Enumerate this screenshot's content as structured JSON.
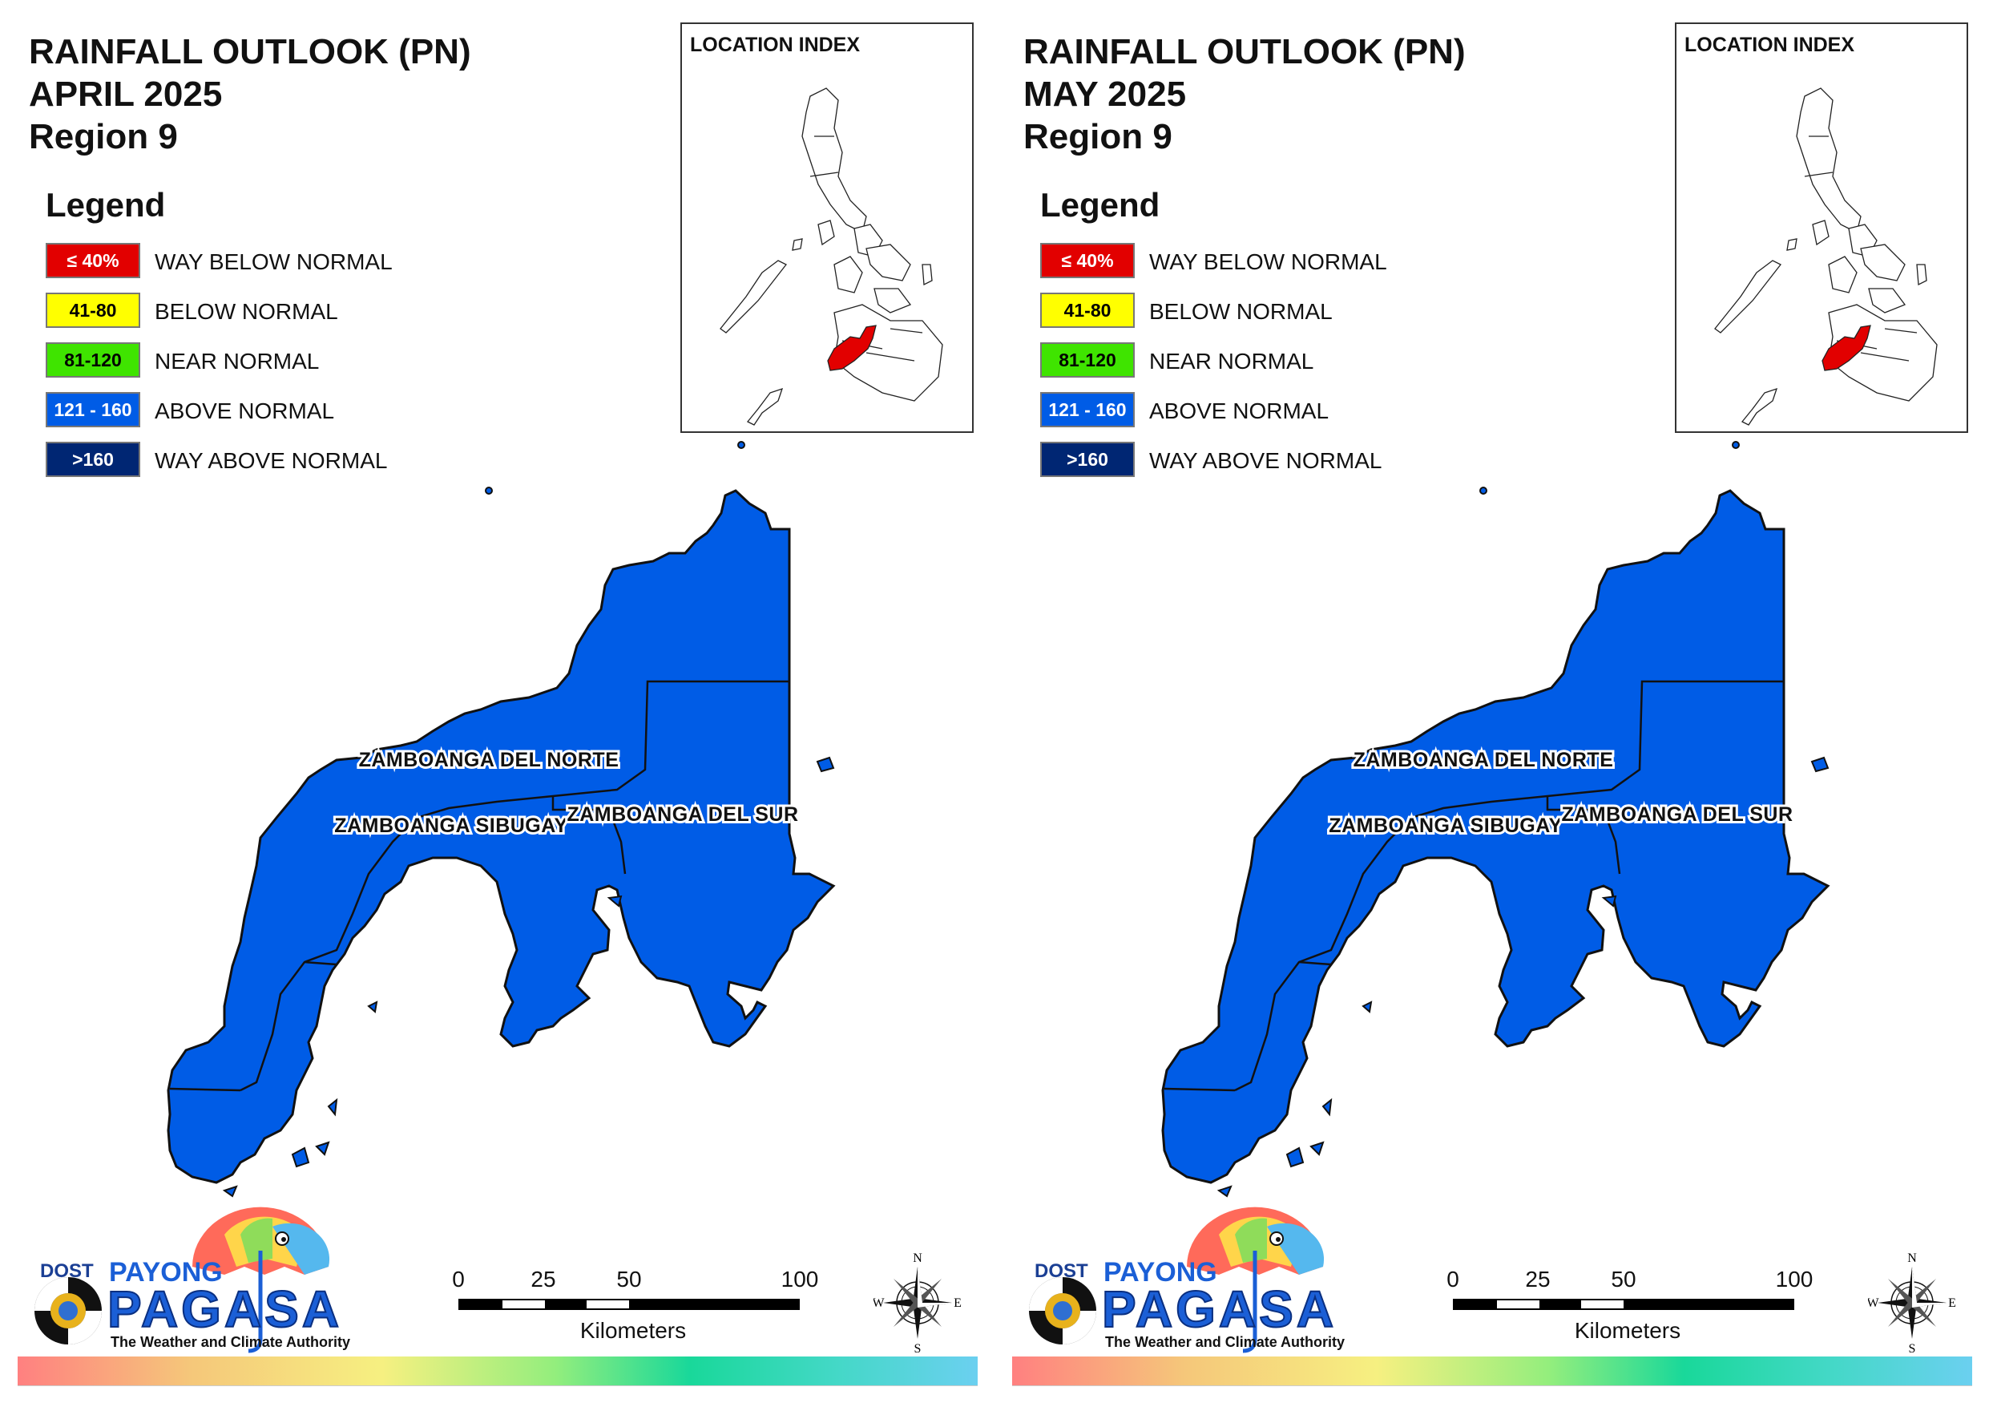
{
  "panels": [
    {
      "title_line1": "RAINFALL OUTLOOK (PN)",
      "title_line2": "APRIL 2025",
      "title_line3": "Region 9"
    },
    {
      "title_line1": "RAINFALL OUTLOOK (PN)",
      "title_line2": "MAY 2025",
      "title_line3": "Region 9"
    }
  ],
  "legend": {
    "heading": "Legend",
    "items": [
      {
        "code": "≤ 40%",
        "label": "WAY BELOW NORMAL",
        "color": "#e20000",
        "text_color": "#ffffff"
      },
      {
        "code": "41-80",
        "label": "BELOW NORMAL",
        "color": "#ffff00",
        "text_color": "#000000"
      },
      {
        "code": "81-120",
        "label": "NEAR NORMAL",
        "color": "#3fe400",
        "text_color": "#000000"
      },
      {
        "code": "121 - 160",
        "label": "ABOVE NORMAL",
        "color": "#005ce6",
        "text_color": "#ffffff"
      },
      {
        "code": ">160",
        "label": "WAY ABOVE NORMAL",
        "color": "#002673",
        "text_color": "#ffffff"
      }
    ]
  },
  "inset": {
    "title": "LOCATION INDEX",
    "highlight_color": "#e20000"
  },
  "map": {
    "fill_color": "#005ce6",
    "provinces": [
      {
        "name": "ZAMBOANGA DEL NORTE",
        "category": "ABOVE NORMAL"
      },
      {
        "name": "ZAMBOANGA SIBUGAY",
        "category": "ABOVE NORMAL"
      },
      {
        "name": "ZAMBOANGA DEL SUR",
        "category": "ABOVE NORMAL"
      }
    ]
  },
  "scale_bar": {
    "ticks": [
      "0",
      "25",
      "50",
      "100"
    ],
    "unit": "Kilometers"
  },
  "compass": {
    "n": "N",
    "e": "E",
    "s": "S",
    "w": "W"
  },
  "logo": {
    "dost": "DOST",
    "payong": "PAYONG",
    "pagasa": "PAGASA",
    "tagline": "The Weather and Climate Authority"
  }
}
